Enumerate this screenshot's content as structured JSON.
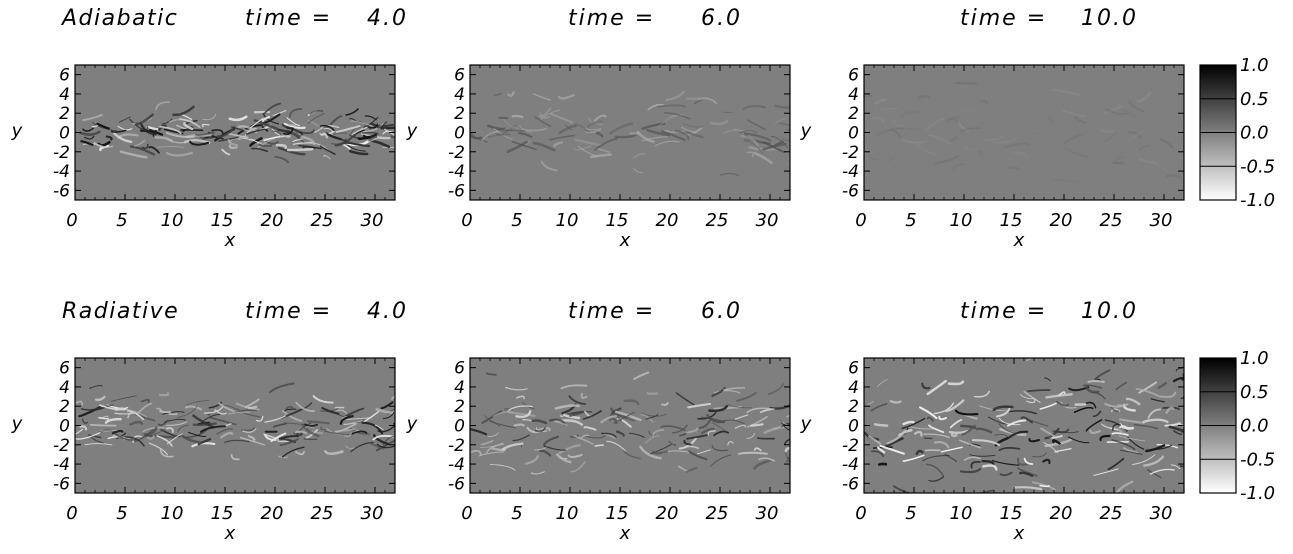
{
  "figure": {
    "rows": [
      {
        "label": "Adiabatic",
        "activity": [
          0.8,
          0.35,
          0.12
        ]
      },
      {
        "label": "Radiative",
        "activity": [
          0.75,
          0.65,
          0.8
        ]
      }
    ],
    "time_prefix": "time =",
    "times": [
      "4.0",
      "6.0",
      "10.0"
    ]
  },
  "chart_data": {
    "type": "heatmap",
    "xlabel": "x",
    "ylabel": "y",
    "xlim": [
      0,
      32
    ],
    "ylim": [
      -7,
      7
    ],
    "xticks": [
      0,
      5,
      10,
      15,
      20,
      25,
      30
    ],
    "yticks": [
      6,
      4,
      2,
      0,
      -2,
      -4,
      -6
    ],
    "colorbar": {
      "range": [
        -1.0,
        1.0
      ],
      "ticks": [
        "1.0",
        "0.5",
        "0.0",
        "-0.5",
        "-1.0"
      ],
      "colormap": "grayscale, black = 1.0, white = -1.0",
      "levels": [
        "#0e0e0e",
        "#3f3f3f",
        "#7f7f7f",
        "#bebebe",
        "#f2f2f2"
      ]
    },
    "panels": [
      {
        "row": "Adiabatic",
        "time": "4.0"
      },
      {
        "row": "Adiabatic",
        "time": "6.0"
      },
      {
        "row": "Adiabatic",
        "time": "10.0"
      },
      {
        "row": "Radiative",
        "time": "4.0"
      },
      {
        "row": "Radiative",
        "time": "6.0"
      },
      {
        "row": "Radiative",
        "time": "10.0"
      }
    ]
  }
}
